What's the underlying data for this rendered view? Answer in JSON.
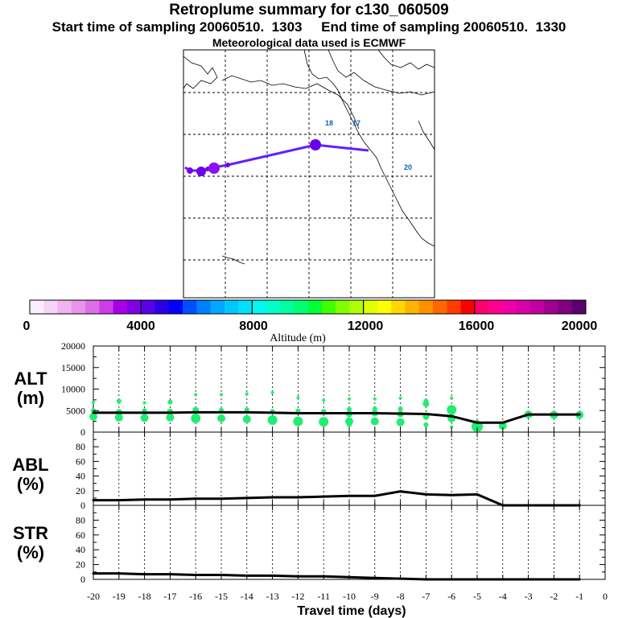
{
  "header": {
    "title": "Retroplume summary for c130_060509",
    "sampling_line": "Start time of sampling 20060510.  1303     End time of sampling 20060510.  1330",
    "met_line": "Meteorological data used is ECMWF"
  },
  "map": {
    "day_labels": [
      "18",
      "17",
      "20"
    ]
  },
  "colorbar": {
    "colors": [
      "#ffeeff",
      "#f7d4f7",
      "#f0b4f0",
      "#e894ea",
      "#dd6fe6",
      "#cc3ce8",
      "#a600e8",
      "#8000e8",
      "#5a00e6",
      "#2800e8",
      "#0000ff",
      "#0050ff",
      "#0080ff",
      "#00a8ff",
      "#00c8ff",
      "#00e0ff",
      "#00f8f0",
      "#00ffc8",
      "#00ffa0",
      "#00ff70",
      "#00ff38",
      "#40ff00",
      "#80ff00",
      "#b0ff00",
      "#e0ff00",
      "#ffff00",
      "#ffd800",
      "#ffb400",
      "#ff9000",
      "#ff6800",
      "#ff3c00",
      "#ff0000",
      "#ff0070",
      "#ff0090",
      "#f000a8",
      "#d800a8",
      "#c000a0",
      "#a00090",
      "#800080",
      "#5a006a"
    ],
    "tick_labels": [
      "0",
      "4000",
      "8000",
      "12000",
      "16000",
      "20000"
    ],
    "label": "Altitude (m)"
  },
  "panels": {
    "alt_label": [
      "ALT",
      "(m)"
    ],
    "abl_label": [
      "ABL",
      "(%)"
    ],
    "str_label": [
      "STR",
      "(%)"
    ],
    "xlabel": "Travel time (days)"
  },
  "chart_data": {
    "type": "line",
    "x_categories": [
      -20,
      -19,
      -18,
      -17,
      -16,
      -15,
      -14,
      -13,
      -12,
      -11,
      -10,
      -9,
      -8,
      -7,
      -6,
      -5,
      -4,
      -3,
      -2,
      -1,
      0
    ],
    "xlim": [
      -20,
      0
    ],
    "xticks": [
      "-20",
      "-19",
      "-18",
      "-17",
      "-16",
      "-15",
      "-14",
      "-13",
      "-12",
      "-11",
      "-10",
      "-9",
      "-8",
      "-7",
      "-6",
      "-5",
      "-4",
      "-3",
      "-2",
      "-1",
      "0"
    ],
    "xlabel": "Travel time (days)",
    "panels": [
      {
        "name": "ALT",
        "ylabel": "ALT (m)",
        "ylim": [
          0,
          20000
        ],
        "yticks": [
          "0",
          "5000",
          "10000",
          "15000",
          "20000"
        ],
        "x": [
          -20,
          -19,
          -18,
          -17,
          -16,
          -15,
          -14,
          -13,
          -12,
          -11,
          -10,
          -9,
          -8,
          -7,
          -6,
          -5,
          -4,
          -3,
          -2,
          -1
        ],
        "mean_altitude": [
          4500,
          4500,
          4500,
          4500,
          4600,
          4600,
          4600,
          4500,
          4400,
          4400,
          4400,
          4400,
          4300,
          4200,
          3700,
          2200,
          2200,
          4100,
          4100,
          4100
        ],
        "plume_clusters": [
          {
            "day": -20,
            "points": [
              [
                7000,
                2
              ],
              [
                5000,
                3
              ],
              [
                3600,
                5
              ]
            ]
          },
          {
            "day": -19,
            "points": [
              [
                7200,
                3
              ],
              [
                4600,
                4
              ],
              [
                3400,
                5
              ]
            ]
          },
          {
            "day": -18,
            "points": [
              [
                6800,
                2
              ],
              [
                5000,
                3
              ],
              [
                3300,
                5
              ]
            ]
          },
          {
            "day": -17,
            "points": [
              [
                7000,
                3
              ],
              [
                4700,
                4
              ],
              [
                3400,
                5
              ]
            ]
          },
          {
            "day": -16,
            "points": [
              [
                8700,
                2
              ],
              [
                5100,
                4
              ],
              [
                3200,
                6
              ]
            ]
          },
          {
            "day": -15,
            "points": [
              [
                8700,
                2
              ],
              [
                5100,
                3
              ],
              [
                3200,
                5
              ]
            ]
          },
          {
            "day": -14,
            "points": [
              [
                8900,
                2
              ],
              [
                5200,
                3
              ],
              [
                3000,
                5
              ]
            ]
          },
          {
            "day": -13,
            "points": [
              [
                9200,
                2
              ],
              [
                4800,
                3
              ],
              [
                2800,
                6
              ]
            ]
          },
          {
            "day": -12,
            "points": [
              [
                8000,
                2
              ],
              [
                4900,
                3
              ],
              [
                2500,
                6
              ]
            ]
          },
          {
            "day": -11,
            "points": [
              [
                7400,
                2
              ],
              [
                4800,
                3
              ],
              [
                2400,
                6
              ]
            ]
          },
          {
            "day": -10,
            "points": [
              [
                7700,
                2
              ],
              [
                5300,
                3
              ],
              [
                4200,
                4
              ],
              [
                2500,
                5
              ],
              [
                1700,
                3
              ]
            ]
          },
          {
            "day": -9,
            "points": [
              [
                7700,
                2
              ],
              [
                5400,
                3
              ],
              [
                4400,
                4
              ],
              [
                2500,
                5
              ]
            ]
          },
          {
            "day": -8,
            "points": [
              [
                7900,
                2
              ],
              [
                5400,
                3
              ],
              [
                4200,
                4
              ],
              [
                2300,
                5
              ]
            ]
          },
          {
            "day": -7,
            "points": [
              [
                7200,
                3
              ],
              [
                6600,
                4
              ],
              [
                3600,
                4
              ],
              [
                1700,
                3
              ]
            ]
          },
          {
            "day": -6,
            "points": [
              [
                7900,
                2
              ],
              [
                5200,
                6
              ],
              [
                4700,
                4
              ],
              [
                3200,
                5
              ],
              [
                1200,
                2
              ]
            ]
          },
          {
            "day": -5,
            "points": [
              [
                1300,
                7
              ],
              [
                2300,
                3
              ]
            ]
          },
          {
            "day": -4,
            "points": [
              [
                1500,
                5
              ]
            ]
          },
          {
            "day": -3,
            "points": [
              [
                4100,
                5
              ]
            ]
          },
          {
            "day": -2,
            "points": [
              [
                4000,
                5
              ]
            ]
          },
          {
            "day": -1,
            "points": [
              [
                4000,
                5
              ]
            ]
          }
        ]
      },
      {
        "name": "ABL",
        "ylabel": "ABL (%)",
        "ylim": [
          0,
          100
        ],
        "yticks": [
          "0",
          "20",
          "40",
          "60",
          "80"
        ],
        "x": [
          -20,
          -19,
          -18,
          -17,
          -16,
          -15,
          -14,
          -13,
          -12,
          -11,
          -10,
          -9,
          -8,
          -7,
          -6,
          -5,
          -4,
          -3,
          -2,
          -1
        ],
        "values": [
          7,
          7,
          8,
          8,
          9,
          9,
          10,
          11,
          11,
          12,
          13,
          13,
          19,
          15,
          14,
          15,
          0,
          0,
          0,
          0
        ]
      },
      {
        "name": "STR",
        "ylabel": "STR (%)",
        "ylim": [
          0,
          100
        ],
        "yticks": [
          "0",
          "20",
          "40",
          "60",
          "80"
        ],
        "x": [
          -20,
          -19,
          -18,
          -17,
          -16,
          -15,
          -14,
          -13,
          -12,
          -11,
          -10,
          -9,
          -8,
          -7,
          -6,
          -5,
          -4,
          -3,
          -2,
          -1
        ],
        "values": [
          8,
          8,
          7,
          7,
          6,
          6,
          5,
          5,
          4,
          4,
          3,
          2,
          1,
          0,
          0,
          0,
          0,
          0,
          0,
          0
        ]
      }
    ]
  }
}
